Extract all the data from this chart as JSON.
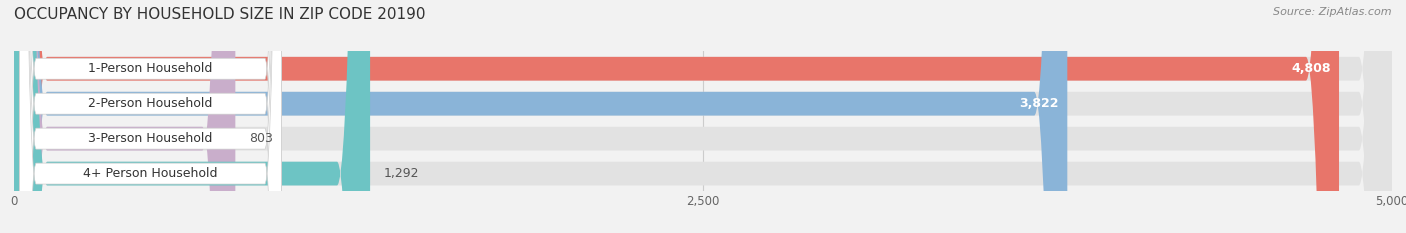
{
  "title": "OCCUPANCY BY HOUSEHOLD SIZE IN ZIP CODE 20190",
  "source": "Source: ZipAtlas.com",
  "categories": [
    "1-Person Household",
    "2-Person Household",
    "3-Person Household",
    "4+ Person Household"
  ],
  "values": [
    4808,
    3822,
    803,
    1292
  ],
  "bar_colors": [
    "#e8756a",
    "#8ab4d8",
    "#c9aecb",
    "#6dc4c4"
  ],
  "xlim": [
    0,
    5000
  ],
  "xticks": [
    0,
    2500,
    5000
  ],
  "xticklabels": [
    "0",
    "2,500",
    "5,000"
  ],
  "bar_height": 0.68,
  "background_color": "#f2f2f2",
  "bar_background_color": "#e2e2e2",
  "label_fontsize": 9,
  "title_fontsize": 11,
  "value_inside_color": "#ffffff",
  "value_outside_color": "#555555",
  "label_text_color": "#333333"
}
